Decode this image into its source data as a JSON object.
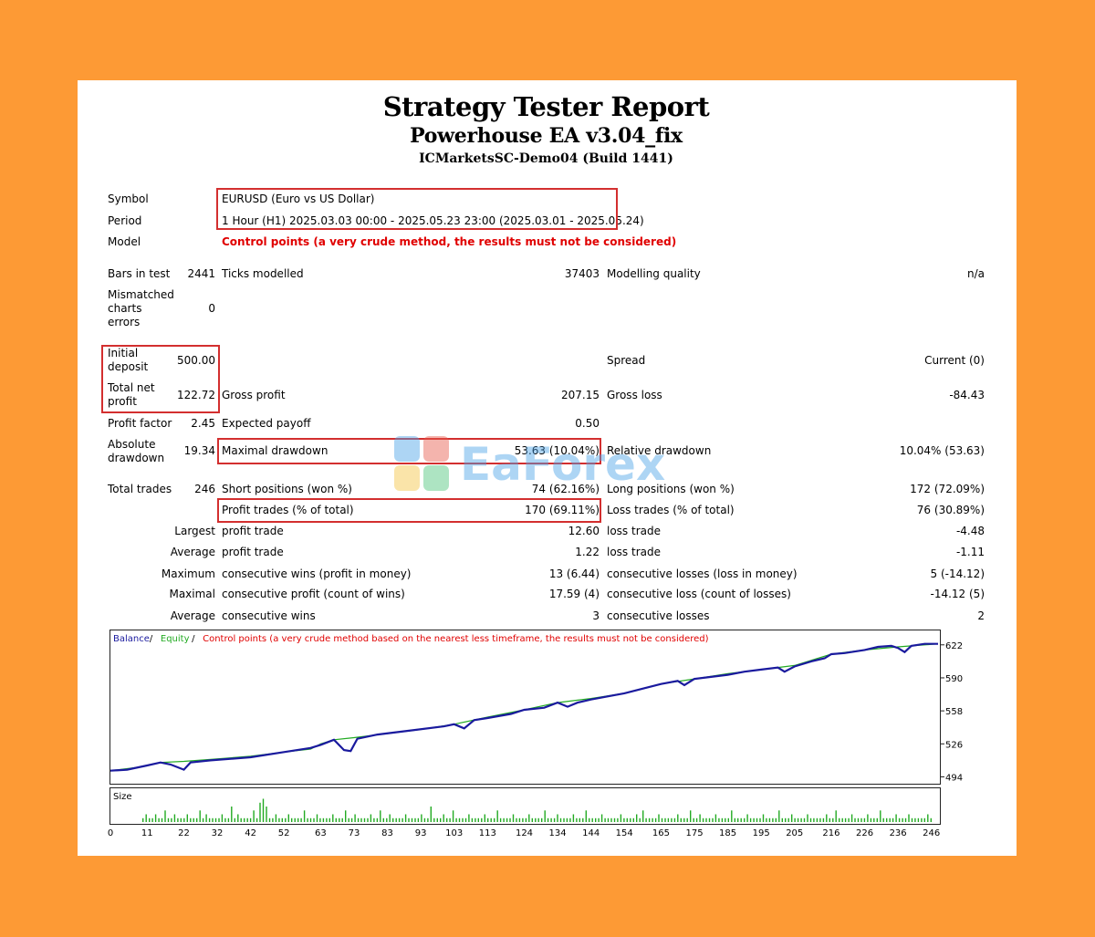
{
  "header": {
    "title": "Strategy Tester Report",
    "ea_name": "Powerhouse EA v3.04_fix",
    "server": "ICMarketsSC-Demo04 (Build 1441)"
  },
  "info": {
    "symbol_label": "Symbol",
    "symbol_value": "EURUSD (Euro vs US Dollar)",
    "period_label": "Period",
    "period_value": "1 Hour (H1) 2025.03.03 00:00 - 2025.05.23 23:00 (2025.03.01 - 2025.05.24)",
    "model_label": "Model",
    "model_value": "Control points (a very crude method, the results must not be considered)"
  },
  "stats": {
    "bars_label": "Bars in test",
    "bars_value": "2441",
    "ticks_label": "Ticks modelled",
    "ticks_value": "37403",
    "quality_label": "Modelling quality",
    "quality_value": "n/a",
    "mismatched_label_1": "Mismatched",
    "mismatched_label_2": "charts",
    "mismatched_label_3": "errors",
    "mismatched_value": "0",
    "initial_label_1": "Initial",
    "initial_label_2": "deposit",
    "initial_value": "500.00",
    "spread_label": "Spread",
    "spread_value": "Current (0)",
    "netprofit_label_1": "Total net",
    "netprofit_label_2": "profit",
    "netprofit_value": "122.72",
    "gross_profit_label": "Gross profit",
    "gross_profit_value": "207.15",
    "gross_loss_label": "Gross loss",
    "gross_loss_value": "-84.43",
    "pf_label": "Profit factor",
    "pf_value": "2.45",
    "payoff_label": "Expected payoff",
    "payoff_value": "0.50",
    "absdd_label_1": "Absolute",
    "absdd_label_2": "drawdown",
    "absdd_value": "19.34",
    "maxdd_label": "Maximal drawdown",
    "maxdd_value": "53.63 (10.04%)",
    "reldd_label": "Relative drawdown",
    "reldd_value": "10.04% (53.63)",
    "total_trades_label": "Total trades",
    "total_trades_value": "246",
    "short_label": "Short positions (won %)",
    "short_value": "74 (62.16%)",
    "long_label": "Long positions (won %)",
    "long_value": "172 (72.09%)",
    "profit_trades_label": "Profit trades (% of total)",
    "profit_trades_value": "170 (69.11%)",
    "loss_trades_label": "Loss trades (% of total)",
    "loss_trades_value": "76 (30.89%)",
    "largest_label": "Largest",
    "largest_profit_label": "profit trade",
    "largest_profit_value": "12.60",
    "largest_loss_label": "loss trade",
    "largest_loss_value": "-4.48",
    "average_label": "Average",
    "average_profit_label": "profit trade",
    "average_profit_value": "1.22",
    "average_loss_label": "loss trade",
    "average_loss_value": "-1.11",
    "maximum_label": "Maximum",
    "max_cons_wins_label": "consecutive wins (profit in money)",
    "max_cons_wins_value": "13 (6.44)",
    "max_cons_losses_label": "consecutive losses (loss in money)",
    "max_cons_losses_value": "5 (-14.12)",
    "maximal_label": "Maximal",
    "maximal_profit_label": "consecutive profit (count of wins)",
    "maximal_profit_value": "17.59 (4)",
    "maximal_loss_label": "consecutive loss (count of losses)",
    "maximal_loss_value": "-14.12 (5)",
    "average2_label": "Average",
    "avg_cons_wins_label": "consecutive wins",
    "avg_cons_wins_value": "3",
    "avg_cons_losses_label": "consecutive losses",
    "avg_cons_losses_value": "2"
  },
  "watermark": "EaForex",
  "chart_data": {
    "type": "line",
    "legend": [
      {
        "name": "Balance",
        "color": "#1A1A9E"
      },
      {
        "name": "Equity",
        "color": "#22AA22"
      },
      {
        "name": "Control points (a very crude method based on the nearest less timeframe, the results must not be considered)",
        "color": "#E00000"
      }
    ],
    "y_ticks": [
      "622",
      "590",
      "558",
      "526",
      "494"
    ],
    "ylim": [
      490,
      628
    ],
    "x_ticks": [
      "0",
      "11",
      "22",
      "32",
      "42",
      "52",
      "63",
      "73",
      "83",
      "93",
      "103",
      "113",
      "124",
      "134",
      "144",
      "154",
      "165",
      "175",
      "185",
      "195",
      "205",
      "216",
      "226",
      "236",
      "246"
    ],
    "xlim": [
      0,
      248
    ],
    "size_label": "Size",
    "balance": [
      [
        0,
        500
      ],
      [
        5,
        501
      ],
      [
        11,
        505
      ],
      [
        15,
        508
      ],
      [
        18,
        506
      ],
      [
        22,
        501
      ],
      [
        24,
        508
      ],
      [
        30,
        510
      ],
      [
        42,
        513
      ],
      [
        52,
        518
      ],
      [
        60,
        522
      ],
      [
        63,
        525
      ],
      [
        67,
        530
      ],
      [
        70,
        520
      ],
      [
        72,
        519
      ],
      [
        74,
        531
      ],
      [
        80,
        535
      ],
      [
        90,
        539
      ],
      [
        100,
        543
      ],
      [
        103,
        545
      ],
      [
        106,
        541
      ],
      [
        109,
        549
      ],
      [
        113,
        551
      ],
      [
        120,
        555
      ],
      [
        124,
        559
      ],
      [
        130,
        561
      ],
      [
        134,
        566
      ],
      [
        137,
        562
      ],
      [
        140,
        566
      ],
      [
        144,
        569
      ],
      [
        154,
        575
      ],
      [
        160,
        580
      ],
      [
        165,
        584
      ],
      [
        170,
        587
      ],
      [
        172,
        583
      ],
      [
        175,
        589
      ],
      [
        185,
        593
      ],
      [
        190,
        596
      ],
      [
        195,
        598
      ],
      [
        200,
        600
      ],
      [
        202,
        596
      ],
      [
        205,
        601
      ],
      [
        210,
        606
      ],
      [
        214,
        609
      ],
      [
        216,
        613
      ],
      [
        220,
        614
      ],
      [
        226,
        617
      ],
      [
        230,
        620
      ],
      [
        234,
        621
      ],
      [
        236,
        619
      ],
      [
        238,
        615
      ],
      [
        240,
        621
      ],
      [
        244,
        623
      ],
      [
        248,
        623
      ]
    ],
    "equity": [
      [
        0,
        500
      ],
      [
        10,
        504
      ],
      [
        15,
        508
      ],
      [
        22,
        509
      ],
      [
        30,
        511
      ],
      [
        42,
        514
      ],
      [
        52,
        518
      ],
      [
        60,
        521
      ],
      [
        63,
        526
      ],
      [
        67,
        530
      ],
      [
        73,
        532
      ],
      [
        83,
        536
      ],
      [
        93,
        540
      ],
      [
        103,
        545
      ],
      [
        113,
        552
      ],
      [
        124,
        559
      ],
      [
        134,
        566
      ],
      [
        144,
        570
      ],
      [
        154,
        575
      ],
      [
        165,
        584
      ],
      [
        175,
        589
      ],
      [
        185,
        594
      ],
      [
        195,
        598
      ],
      [
        205,
        602
      ],
      [
        216,
        613
      ],
      [
        226,
        617
      ],
      [
        236,
        620
      ],
      [
        248,
        623
      ]
    ],
    "size_max": 8,
    "size_values": [
      1,
      2,
      1,
      1,
      2,
      1,
      1,
      3,
      1,
      1,
      2,
      1,
      1,
      1,
      2,
      1,
      1,
      1,
      3,
      1,
      2,
      1,
      1,
      1,
      1,
      2,
      1,
      1,
      4,
      1,
      2,
      1,
      1,
      1,
      1,
      3,
      1,
      5,
      6,
      4,
      1,
      1,
      2,
      1,
      1,
      1,
      2,
      1,
      1,
      1,
      1,
      3,
      1,
      1,
      1,
      2,
      1,
      1,
      1,
      1,
      2,
      1,
      1,
      1,
      3,
      1,
      1,
      2,
      1,
      1,
      1,
      1,
      2,
      1,
      1,
      3,
      1,
      1,
      2,
      1,
      1,
      1,
      1,
      2,
      1,
      1,
      1,
      1,
      2,
      1,
      1,
      4,
      1,
      1,
      1,
      2,
      1,
      1,
      3,
      1,
      1,
      1,
      1,
      2,
      1,
      1,
      1,
      1,
      2,
      1,
      1,
      1,
      3,
      1,
      1,
      1,
      1,
      2,
      1,
      1,
      1,
      1,
      2,
      1,
      1,
      1,
      1,
      3,
      1,
      1,
      1,
      2,
      1,
      1,
      1,
      1,
      2,
      1,
      1,
      1,
      3,
      1,
      1,
      1,
      1,
      2,
      1,
      1,
      1,
      1,
      1,
      2,
      1,
      1,
      1,
      1,
      2,
      1,
      3,
      1,
      1,
      1,
      1,
      2,
      1,
      1,
      1,
      1,
      1,
      2,
      1,
      1,
      1,
      3,
      1,
      1,
      2,
      1,
      1,
      1,
      1,
      2,
      1,
      1,
      1,
      1,
      3,
      1,
      1,
      1,
      1,
      2,
      1,
      1,
      1,
      1,
      2,
      1,
      1,
      1,
      1,
      3,
      1,
      1,
      1,
      2,
      1,
      1,
      1,
      1,
      2,
      1,
      1,
      1,
      1,
      1,
      2,
      1,
      1,
      3,
      1,
      1,
      1,
      1,
      2,
      1,
      1,
      1,
      1,
      2,
      1,
      1,
      1,
      3,
      1,
      1,
      1,
      1,
      2,
      1,
      1,
      1,
      2,
      1,
      1,
      1,
      1,
      1,
      2,
      1
    ]
  }
}
